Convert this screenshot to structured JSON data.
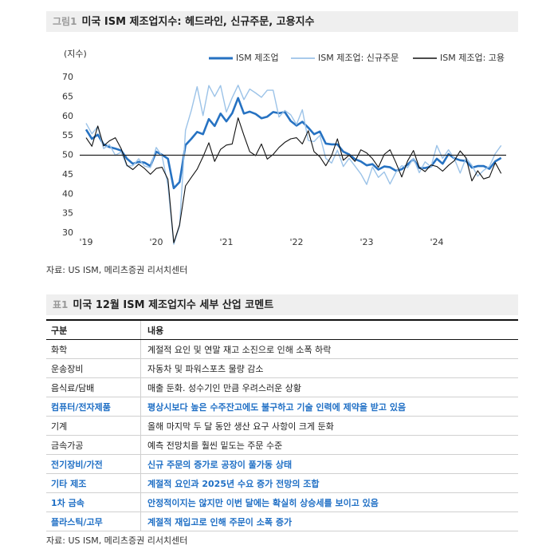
{
  "figure_label": "그림1",
  "figure_title": "미국 ISM 제조업지수: 헤드라인, 신규주문, 고용지수",
  "chart_data": {
    "type": "line",
    "y_label": "(지수)",
    "categories": [
      "'19",
      null,
      null,
      null,
      null,
      null,
      null,
      null,
      null,
      null,
      null,
      null,
      "'20",
      null,
      null,
      null,
      null,
      null,
      null,
      null,
      null,
      null,
      null,
      null,
      "'21",
      null,
      null,
      null,
      null,
      null,
      null,
      null,
      null,
      null,
      null,
      null,
      "'22",
      null,
      null,
      null,
      null,
      null,
      null,
      null,
      null,
      null,
      null,
      null,
      "'23",
      null,
      null,
      null,
      null,
      null,
      null,
      null,
      null,
      null,
      null,
      null,
      "'24",
      null,
      null,
      null,
      null,
      null,
      null,
      null,
      null,
      null,
      null,
      null
    ],
    "series": [
      {
        "name": "ISM 제조업",
        "color": "#2672c2",
        "width": 2.6,
        "values": [
          56.6,
          54.2,
          55.3,
          52.8,
          52.1,
          51.7,
          51.2,
          49.1,
          47.8,
          48.3,
          48.1,
          47.2,
          50.9,
          50.1,
          49.1,
          41.5,
          43.1,
          52.6,
          54.2,
          56.0,
          55.4,
          59.3,
          57.5,
          60.7,
          58.7,
          60.8,
          64.7,
          60.7,
          61.2,
          60.6,
          59.5,
          59.9,
          61.1,
          60.8,
          61.1,
          58.8,
          57.6,
          58.6,
          57.1,
          55.4,
          56.1,
          53.0,
          52.8,
          52.8,
          50.9,
          50.2,
          49.0,
          48.4,
          47.4,
          47.7,
          46.3,
          47.1,
          46.9,
          46.0,
          46.4,
          47.6,
          49.0,
          46.7,
          46.7,
          47.1,
          49.1,
          47.8,
          50.3,
          49.2,
          48.7,
          48.5,
          46.8,
          47.2,
          47.2,
          46.5,
          48.4,
          49.3
        ]
      },
      {
        "name": "ISM 제조업: 신규주문",
        "color": "#9cc3e8",
        "width": 1.4,
        "values": [
          58.2,
          55.5,
          57.4,
          51.7,
          52.7,
          50.0,
          50.8,
          47.2,
          47.3,
          49.1,
          47.2,
          46.8,
          52.0,
          49.8,
          42.2,
          27.1,
          31.8,
          56.4,
          61.5,
          67.6,
          60.2,
          67.9,
          65.1,
          67.9,
          61.1,
          64.8,
          68.0,
          64.3,
          67.0,
          66.0,
          64.9,
          66.7,
          66.7,
          59.8,
          61.5,
          60.4,
          57.9,
          61.7,
          53.8,
          53.5,
          55.1,
          49.2,
          48.0,
          51.3,
          47.1,
          49.2,
          47.2,
          45.2,
          42.5,
          47.0,
          44.3,
          45.7,
          42.6,
          45.6,
          47.3,
          46.8,
          49.2,
          45.5,
          48.3,
          47.0,
          52.5,
          49.2,
          51.4,
          49.1,
          45.4,
          49.3,
          47.4,
          44.6,
          46.1,
          47.1,
          50.4,
          52.5
        ]
      },
      {
        "name": "ISM 제조업: 고용",
        "color": "#111111",
        "width": 1.1,
        "values": [
          54.5,
          52.3,
          57.5,
          52.4,
          53.7,
          54.5,
          51.7,
          47.4,
          46.3,
          47.7,
          46.6,
          45.1,
          46.6,
          46.9,
          43.8,
          27.5,
          32.1,
          42.1,
          44.3,
          46.4,
          49.6,
          53.2,
          48.4,
          51.5,
          52.6,
          52.9,
          59.6,
          55.1,
          50.9,
          49.9,
          52.9,
          49.0,
          50.2,
          52.0,
          53.3,
          54.2,
          54.5,
          52.9,
          56.3,
          50.9,
          49.6,
          47.3,
          49.9,
          54.2,
          48.7,
          50.0,
          48.4,
          51.4,
          50.6,
          49.1,
          46.9,
          50.2,
          51.4,
          48.1,
          44.4,
          48.5,
          51.2,
          46.8,
          45.8,
          47.5,
          47.1,
          45.9,
          47.4,
          48.6,
          51.1,
          49.3,
          43.4,
          46.0,
          43.9,
          44.4,
          48.1,
          45.3
        ]
      }
    ],
    "ylim": [
      30,
      70
    ],
    "yticks": [
      30,
      35,
      40,
      45,
      50,
      55,
      60,
      65,
      70
    ],
    "reference_line": 50,
    "legend": "top"
  },
  "figure_source": "자료: US ISM, 메리츠증권 리서치센터",
  "table_label": "표1",
  "table_title": "미국 12월 ISM 제조업지수 세부 산업 코멘트",
  "table": {
    "header": [
      "구분",
      "내용"
    ],
    "highlight_color": "#1f6fc5",
    "rows": [
      {
        "category": "화학",
        "comment": "계절적 요인 및 연말 재고 소진으로 인해 소폭 하락",
        "highlight": false
      },
      {
        "category": "운송장비",
        "comment": "자동차 및 파워스포츠 물량 감소",
        "highlight": false
      },
      {
        "category": "음식료/담배",
        "comment": "매출 둔화. 성수기인 만큼 우려스러운 상황",
        "highlight": false
      },
      {
        "category": "컴퓨터/전자제품",
        "comment": "평상시보다 높은 수주잔고에도 불구하고 기술 인력에 제약을 받고 있음",
        "highlight": true
      },
      {
        "category": "기계",
        "comment": "올해 마지막 두 달 동안 생산 요구 사항이 크게 둔화",
        "highlight": false
      },
      {
        "category": "금속가공",
        "comment": "예측 전망치를 훨씬 밑도는 주문 수준",
        "highlight": false
      },
      {
        "category": "전기장비/가전",
        "comment": "신규 주문의 증가로 공장이 풀가동 상태",
        "highlight": true
      },
      {
        "category": "기타 제조",
        "comment": "계절적 요인과 2025년 수요 증가 전망의 조합",
        "highlight": true
      },
      {
        "category": "1차 금속",
        "comment": "안정적이지는 않지만 이번 달에는 확실히 상승세를 보이고 있음",
        "highlight": true
      },
      {
        "category": "플라스틱/고무",
        "comment": "계절적 재입고로 인해 주문이 소폭 증가",
        "highlight": true
      }
    ]
  },
  "table_source": "자료: US ISM, 메리츠증권 리서치센터"
}
